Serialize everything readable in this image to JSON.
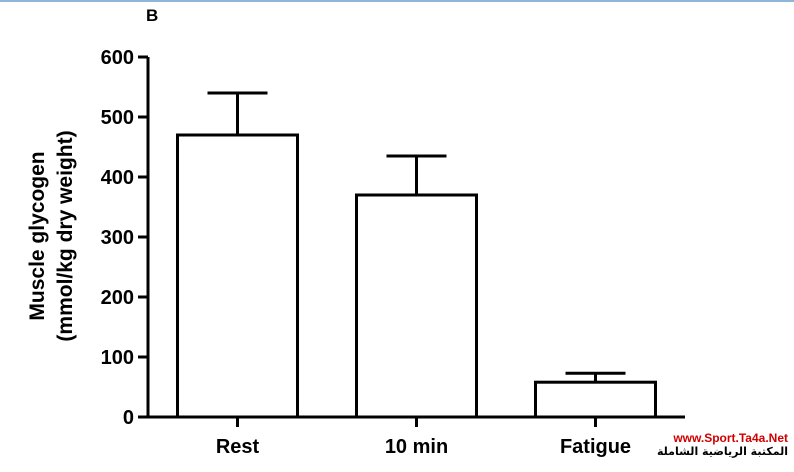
{
  "panel_label": "B",
  "watermark": {
    "url": "www.Sport.Ta4a.Net",
    "arabic": "المكتبة الرياضية الشاملة"
  },
  "chart_data": {
    "type": "bar",
    "title": "",
    "categories": [
      "Rest",
      "10 min",
      "Fatigue"
    ],
    "series": [
      {
        "values": [
          470,
          370,
          58
        ],
        "error_upper": [
          70,
          65,
          15
        ]
      }
    ],
    "xlabel": "",
    "ylabel_lines": [
      "Muscle glycogen",
      "(mmol/kg dry weight)"
    ],
    "ylim": [
      0,
      600
    ],
    "yticks": [
      0,
      100,
      200,
      300,
      400,
      500,
      600
    ],
    "grid": false,
    "bar_fill": "#ffffff",
    "stroke_color": "#000000"
  }
}
